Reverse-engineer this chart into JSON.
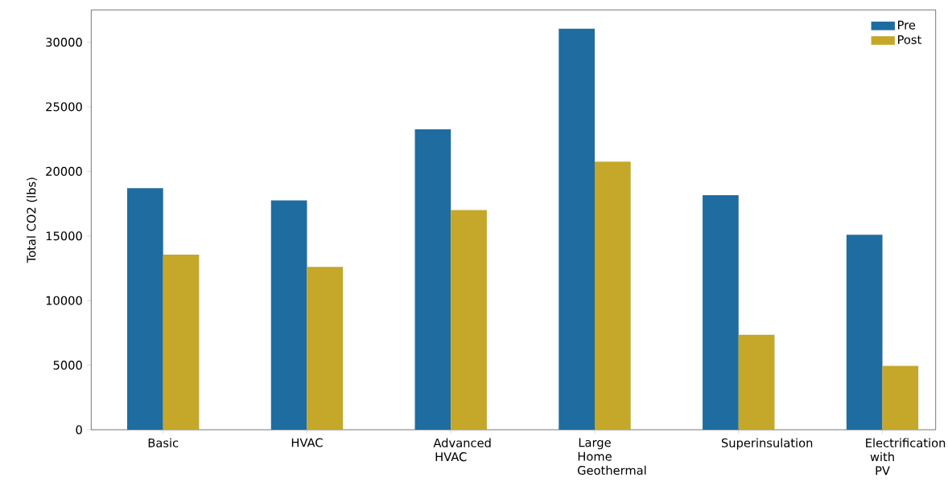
{
  "chart_data": {
    "type": "bar",
    "ylabel": "Total CO2 (lbs)",
    "categories": [
      "Basic",
      "HVAC",
      "Advanced HVAC",
      "Large Home Geothermal",
      "Superinsulation",
      "Electrification with PV"
    ],
    "series": [
      {
        "name": "Pre",
        "color": "#1f6ca1",
        "values": [
          18700,
          17750,
          23250,
          31050,
          18150,
          15100
        ]
      },
      {
        "name": "Post",
        "color": "#c5a72a",
        "values": [
          13550,
          12600,
          17000,
          20750,
          7350,
          4950
        ]
      }
    ],
    "ylim": [
      0,
      32500
    ],
    "yticks": [
      0,
      5000,
      10000,
      15000,
      20000,
      25000,
      30000
    ],
    "grid": false,
    "legend": "top right"
  }
}
